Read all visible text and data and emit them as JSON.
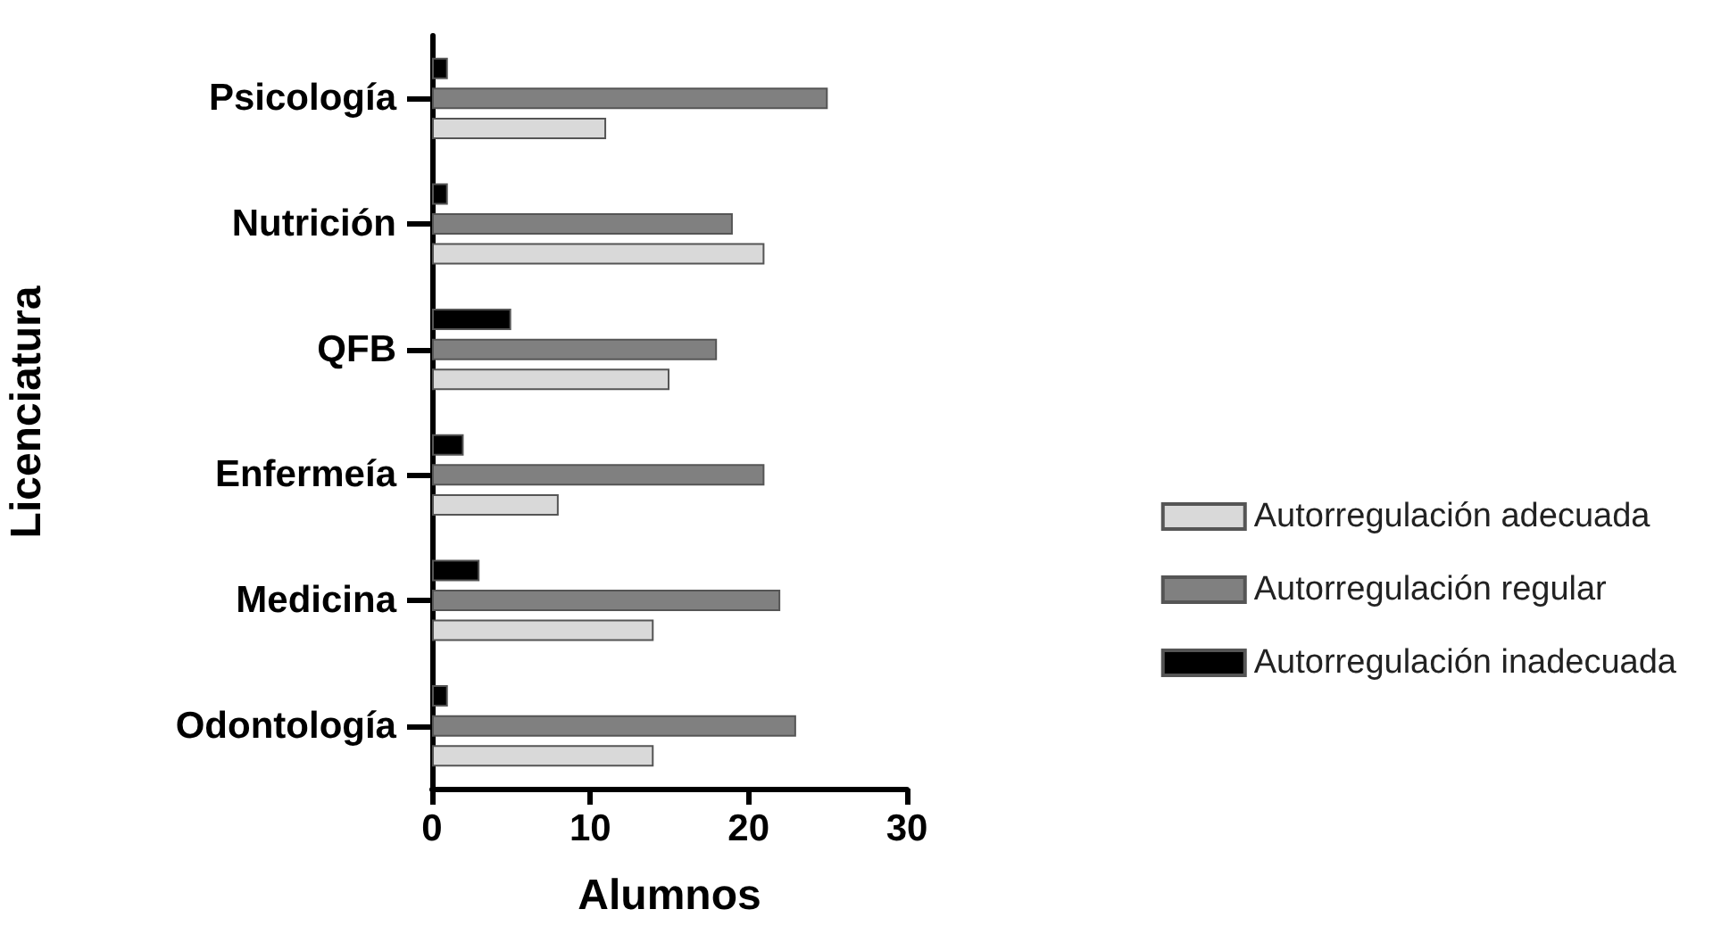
{
  "chart_data": {
    "type": "bar",
    "orientation": "horizontal",
    "xlabel": "Alumnos",
    "ylabel": "Licenciatura",
    "categories": [
      "Psicología",
      "Nutrición",
      "QFB",
      "Enfermeía",
      "Medicina",
      "Odontología"
    ],
    "series": [
      {
        "name": "Autorregulación adecuada",
        "color": "#d9d9d9",
        "values": [
          11,
          21,
          15,
          8,
          14,
          14
        ]
      },
      {
        "name": "Autorregulación regular",
        "color": "#808080",
        "values": [
          25,
          19,
          18,
          21,
          22,
          23
        ]
      },
      {
        "name": "Autorregulación inadecuada",
        "color": "#000000",
        "values": [
          1,
          1,
          5,
          2,
          3,
          1
        ]
      }
    ],
    "xlim": [
      0,
      30
    ],
    "xticks": [
      0,
      10,
      20,
      30
    ],
    "grid": false,
    "legend": "right"
  }
}
